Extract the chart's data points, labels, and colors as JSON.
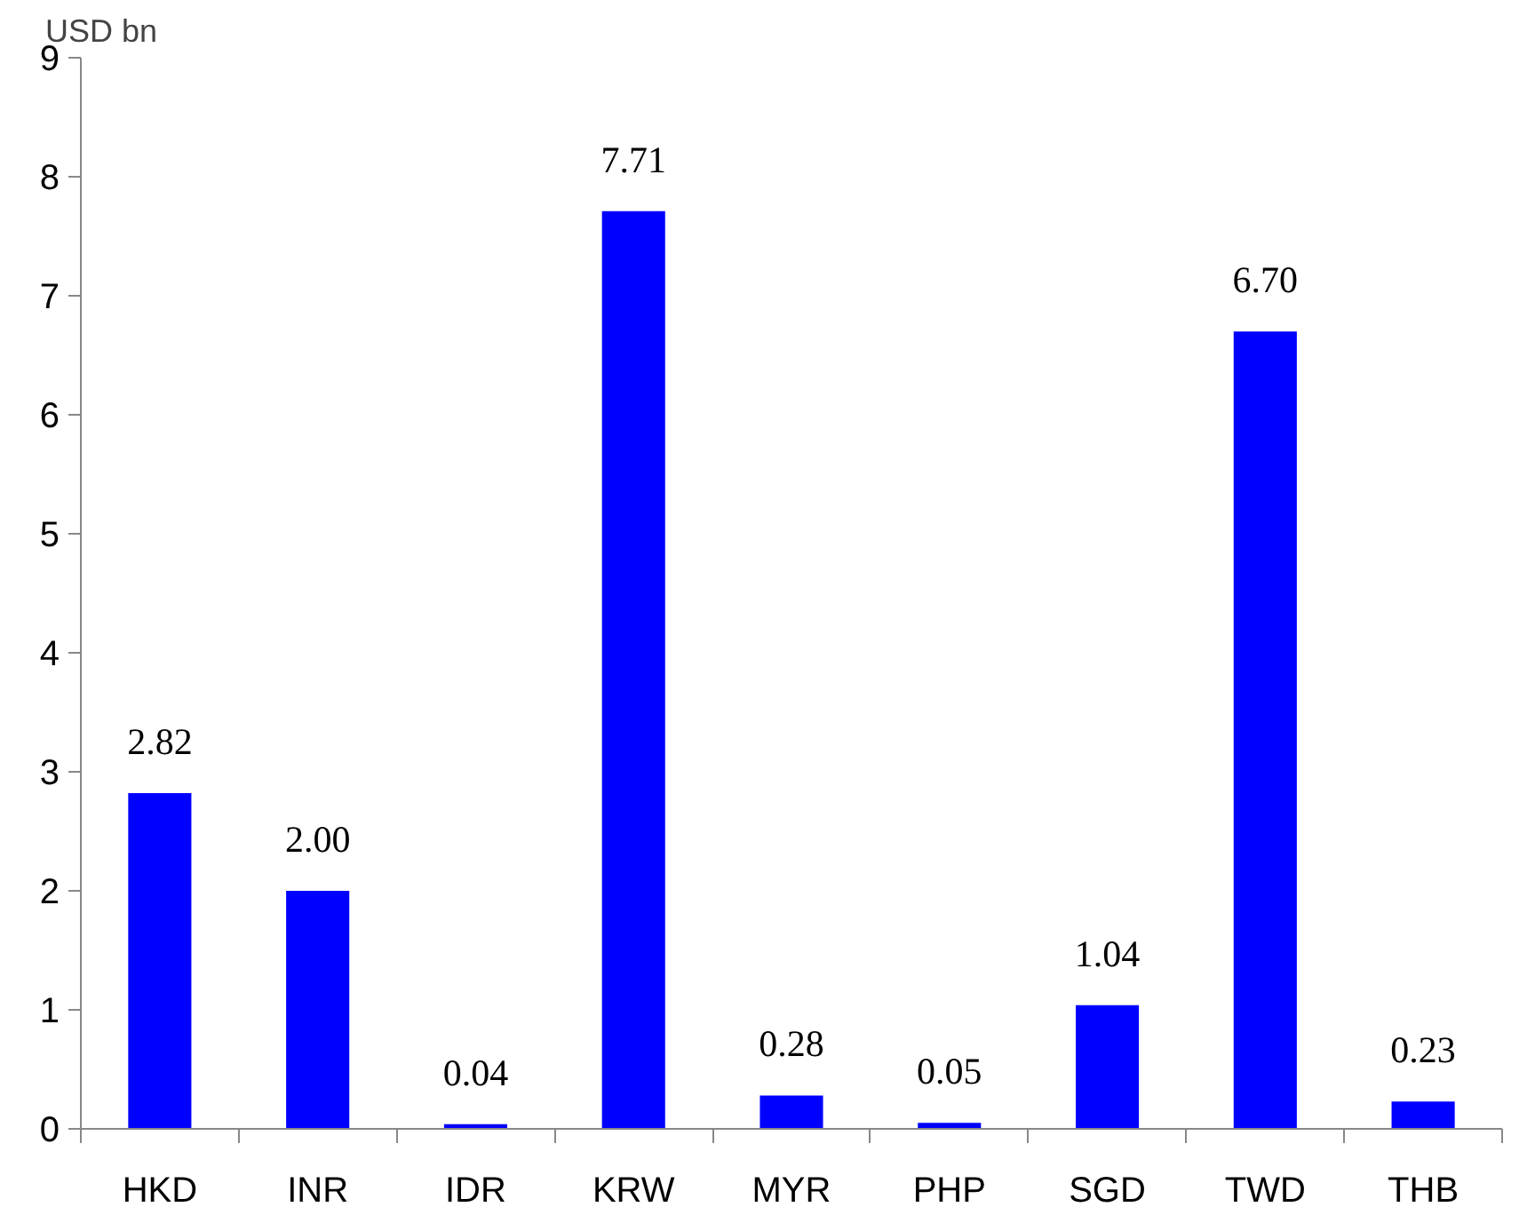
{
  "chart_data": {
    "type": "bar",
    "ylabel": "USD bn",
    "categories": [
      "HKD",
      "INR",
      "IDR",
      "KRW",
      "MYR",
      "PHP",
      "SGD",
      "TWD",
      "THB"
    ],
    "values": [
      2.82,
      2.0,
      0.04,
      7.71,
      0.28,
      0.05,
      1.04,
      6.7,
      0.23
    ],
    "value_labels": [
      "2.82",
      "2.00",
      "0.04",
      "7.71",
      "0.28",
      "0.05",
      "1.04",
      "6.70",
      "0.23"
    ],
    "color": "#0000ff",
    "ylim": [
      0,
      9
    ],
    "yticks": [
      0,
      1,
      2,
      3,
      4,
      5,
      6,
      7,
      8,
      9
    ],
    "grid": false
  }
}
